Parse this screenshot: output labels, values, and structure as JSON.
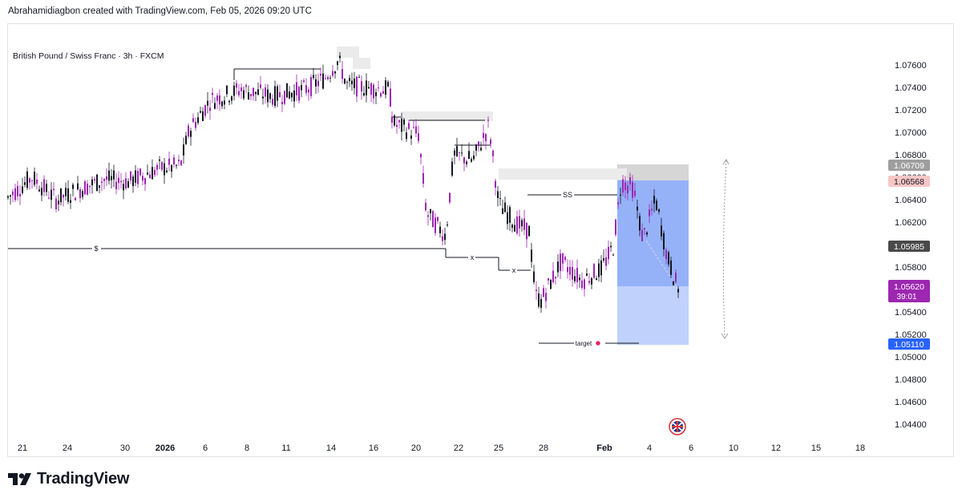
{
  "header": {
    "text": "Abrahamidiagbon created with TradingView.com, Feb 05, 2026 09:20 UTC"
  },
  "symbol": {
    "text": "British Pound / Swiss Franc · 3h · FXCM"
  },
  "brand": {
    "name": "TradingView",
    "logo_icon": "tradingview-logo-icon"
  },
  "chart_data": {
    "type": "candlestick",
    "instrument": "British Pound / Swiss Franc",
    "interval": "3h",
    "source": "FXCM",
    "ylim": [
      1.043,
      1.0778
    ],
    "y_ticks": [
      "1.07600",
      "1.07400",
      "1.07200",
      "1.07000",
      "1.06800",
      "1.06600",
      "1.06400",
      "1.06200",
      "1.06000",
      "1.05800",
      "1.05600",
      "1.05400",
      "1.05200",
      "1.05000",
      "1.04800",
      "1.04600",
      "1.04400"
    ],
    "x_ticks": [
      "21",
      "24",
      "30",
      "2026",
      "6",
      "8",
      "11",
      "14",
      "16",
      "20",
      "22",
      "25",
      "28",
      "Feb",
      "4",
      "6",
      "10",
      "12",
      "15",
      "18"
    ],
    "price_labels": [
      {
        "value": "1.06709",
        "color": "#9e9e9e"
      },
      {
        "value": "1.06568",
        "color": "#f7c6c6",
        "text_color": "#b71c1c"
      },
      {
        "value": "1.05985",
        "color": "#4a4a4a"
      },
      {
        "value": "1.05620",
        "sub": "39:01",
        "color": "#9c27b0"
      },
      {
        "value": "1.05110",
        "color": "#2962ff"
      }
    ],
    "annotations": [
      {
        "text": "$",
        "price": 1.0599
      },
      {
        "text": "x",
        "price": 1.0592
      },
      {
        "text": "x",
        "price": 1.0578
      },
      {
        "text": "SS",
        "price": 1.0646
      },
      {
        "text": "target",
        "price": 1.0511
      }
    ],
    "position": {
      "side": "short",
      "entry": 1.0562,
      "stop": 1.06568,
      "target": 1.0511
    },
    "candle_colors": {
      "up": "#131722",
      "down": "#9c27b0"
    }
  }
}
